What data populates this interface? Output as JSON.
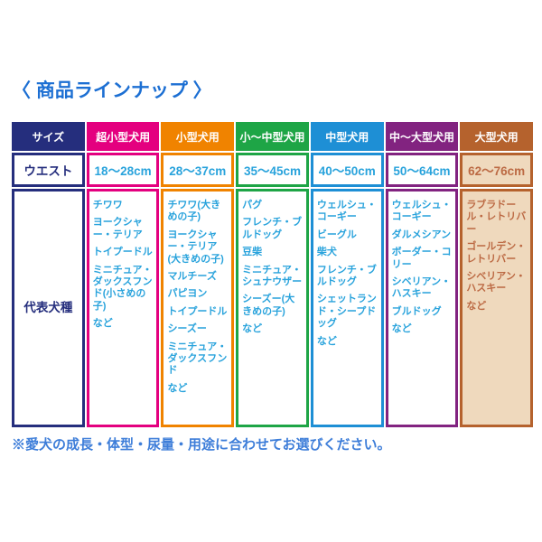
{
  "title": "〈 商品ラインナップ 〉",
  "footnote": "※愛犬の成長・体型・尿量・用途に合わせてお選びください。",
  "colors": {
    "title_blue": "#1c6fd3",
    "footnote_blue": "#3e7ed9",
    "breed_text_cyan": "#29a3dc",
    "size_column_navy": "#252e7d",
    "extra_small_magenta": "#e4007f",
    "small_orange": "#f08300",
    "small_medium_green": "#1ea546",
    "medium_blue": "#1e8fd5",
    "medium_large_purple": "#822380",
    "large_brown": "#b5622d",
    "large_cell_beige": "#efd9bd",
    "large_text_brown": "#bc6a44"
  },
  "table": {
    "size_column": {
      "header": "サイズ",
      "waist_label": "ウエスト",
      "breeds_label": "代表犬種",
      "accent": "#252e7d",
      "text_color": "#252e7d",
      "cell_bg": "#ffffff"
    },
    "columns": [
      {
        "header": "超小型犬用",
        "accent": "#e4007f",
        "text_color": "#29a3dc",
        "cell_bg": "#ffffff",
        "waist": "18～28cm",
        "breeds": [
          "チワワ",
          "ヨークシャー・テリア",
          "トイプードル",
          "ミニチュア・ダックスフンド(小さめの子)",
          "など"
        ]
      },
      {
        "header": "小型犬用",
        "accent": "#f08300",
        "text_color": "#29a3dc",
        "cell_bg": "#ffffff",
        "waist": "28～37cm",
        "breeds": [
          "チワワ(大きめの子)",
          "ヨークシャー・テリア(大きめの子)",
          "マルチーズ",
          "パピヨン",
          "トイプードル",
          "シーズー",
          "ミニチュア・ダックスフンド",
          "など"
        ]
      },
      {
        "header": "小～中型犬用",
        "accent": "#1ea546",
        "text_color": "#29a3dc",
        "cell_bg": "#ffffff",
        "waist": "35～45cm",
        "breeds": [
          "パグ",
          "フレンチ・ブルドッグ",
          "豆柴",
          "ミニチュア・シュナウザー",
          "シーズー(大きめの子)",
          "など"
        ]
      },
      {
        "header": "中型犬用",
        "accent": "#1e8fd5",
        "text_color": "#29a3dc",
        "cell_bg": "#ffffff",
        "waist": "40～50cm",
        "breeds": [
          "ウェルシュ・コーギー",
          "ビーグル",
          "柴犬",
          "フレンチ・ブルドッグ",
          "シェットランド・シープドッグ",
          "など"
        ]
      },
      {
        "header": "中～大型犬用",
        "accent": "#822380",
        "text_color": "#29a3dc",
        "cell_bg": "#ffffff",
        "waist": "50～64cm",
        "breeds": [
          "ウェルシュ・コーギー",
          "ダルメシアン",
          "ボーダー・コリー",
          "シベリアン・ハスキー",
          "ブルドッグ",
          "など"
        ]
      },
      {
        "header": "大型犬用",
        "accent": "#b5622d",
        "text_color": "#bc6a44",
        "cell_bg": "#efd9bd",
        "waist": "62～76cm",
        "breeds": [
          "ラブラドール・レトリバー",
          "ゴールデン・レトリバー",
          "シベリアン・ハスキー",
          "など"
        ]
      }
    ]
  }
}
